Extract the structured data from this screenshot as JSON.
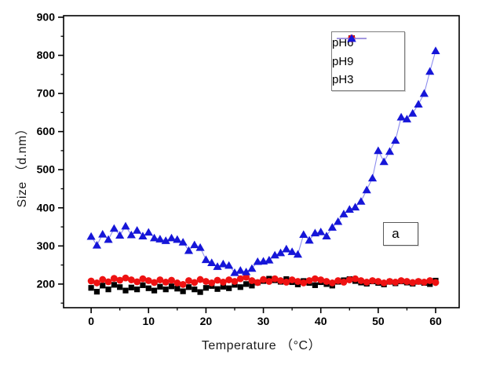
{
  "figure": {
    "background": "#ffffff",
    "annotation_label": "a"
  },
  "chart_data": {
    "type": "scatter",
    "title": "",
    "xlabel": "Temperature （°C）",
    "ylabel": "Size （d.nm）",
    "xlim": [
      -4.8,
      64.1
    ],
    "ylim": [
      138,
      904
    ],
    "x_ticks": [
      0,
      10,
      20,
      30,
      40,
      50,
      60
    ],
    "x_minor_ticks": [
      5,
      15,
      25,
      35,
      45,
      55
    ],
    "y_ticks": [
      200,
      300,
      400,
      500,
      600,
      700,
      800,
      900
    ],
    "y_minor_ticks": [
      150,
      250,
      350,
      450,
      550,
      650,
      750,
      850
    ],
    "grid": false,
    "legend_position": "top-right-inside",
    "annotation": "a",
    "x": [
      0,
      1,
      2,
      3,
      4,
      5,
      6,
      7,
      8,
      9,
      10,
      11,
      12,
      13,
      14,
      15,
      16,
      17,
      18,
      19,
      20,
      21,
      22,
      23,
      24,
      25,
      26,
      27,
      28,
      29,
      30,
      31,
      32,
      33,
      34,
      35,
      36,
      37,
      38,
      39,
      40,
      41,
      42,
      43,
      44,
      45,
      46,
      47,
      48,
      49,
      50,
      51,
      52,
      53,
      54,
      55,
      56,
      57,
      58,
      59,
      60
    ],
    "series": [
      {
        "name": "pH6",
        "marker": "square",
        "marker_color": "#000000",
        "line_color": "#9c9c9c",
        "values": [
          190,
          180,
          196,
          186,
          198,
          192,
          183,
          191,
          186,
          197,
          189,
          183,
          193,
          186,
          194,
          188,
          181,
          192,
          186,
          179,
          190,
          195,
          187,
          193,
          189,
          198,
          192,
          200,
          196,
          204,
          208,
          214,
          210,
          206,
          213,
          205,
          199,
          208,
          203,
          197,
          205,
          200,
          196,
          206,
          210,
          213,
          208,
          204,
          201,
          207,
          203,
          199,
          206,
          202,
          207,
          204,
          201,
          206,
          203,
          200,
          209
        ]
      },
      {
        "name": "pH9",
        "marker": "circle",
        "marker_color": "#ee1212",
        "line_color": "#f8a0a0",
        "values": [
          208,
          203,
          212,
          206,
          215,
          210,
          216,
          211,
          206,
          214,
          209,
          204,
          211,
          205,
          210,
          203,
          199,
          209,
          204,
          212,
          207,
          203,
          210,
          205,
          211,
          207,
          214,
          218,
          209,
          204,
          212,
          207,
          214,
          209,
          205,
          211,
          207,
          203,
          209,
          214,
          211,
          207,
          203,
          209,
          205,
          211,
          214,
          209,
          205,
          209,
          207,
          203,
          207,
          205,
          209,
          207,
          204,
          207,
          205,
          209,
          204
        ]
      },
      {
        "name": "pH3",
        "marker": "triangle",
        "marker_color": "#1616d8",
        "line_color": "#8e8eee",
        "values": [
          325,
          302,
          331,
          317,
          346,
          328,
          352,
          329,
          341,
          326,
          336,
          321,
          318,
          314,
          321,
          317,
          310,
          288,
          303,
          296,
          264,
          256,
          246,
          253,
          249,
          230,
          236,
          232,
          241,
          259,
          260,
          263,
          276,
          282,
          292,
          285,
          278,
          330,
          315,
          334,
          337,
          326,
          349,
          364,
          384,
          396,
          402,
          417,
          447,
          478,
          550,
          521,
          548,
          577,
          638,
          633,
          648,
          672,
          700,
          758,
          812
        ]
      }
    ]
  }
}
